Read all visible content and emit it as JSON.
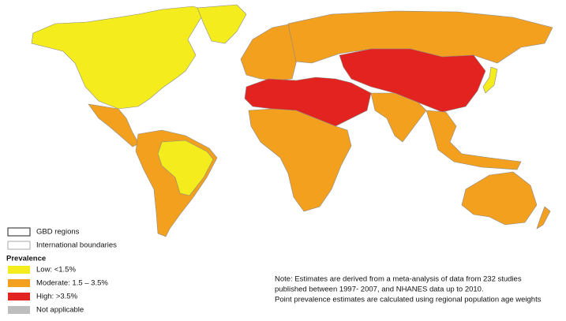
{
  "legend": {
    "boundaries": [
      "GBD regions",
      "International boundaries"
    ],
    "title": "Prevalence",
    "items": [
      {
        "label": "Low: <1.5%",
        "color": "#f4ec1c"
      },
      {
        "label": "Moderate: 1.5 – 3.5%",
        "color": "#f2a01e"
      },
      {
        "label": "High: >3.5%",
        "color": "#e3231f"
      },
      {
        "label": "Not applicable",
        "color": "#bdbdbd"
      }
    ]
  },
  "note": [
    "Note: Estimates are derived from a meta-analysis of data from 232 studies",
    "published between 1997- 2007, and NHANES data up to 2010.",
    "Point prevalence estimates are calculated using regional population age weights"
  ]
}
